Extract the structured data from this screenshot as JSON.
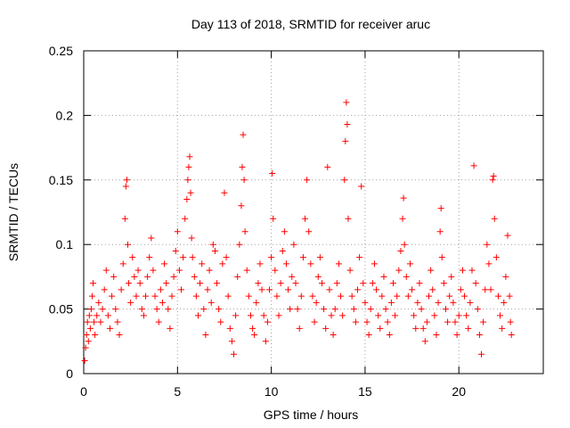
{
  "chart_data": {
    "type": "scatter",
    "title": "Day 113 of 2018, SRMTID for receiver aruc",
    "xlabel": "GPS time / hours",
    "ylabel": "SRMTID / TECUs",
    "xlim": [
      0,
      24.5
    ],
    "ylim": [
      0,
      0.25
    ],
    "x_ticks": [
      0,
      5,
      10,
      15,
      20
    ],
    "y_ticks": [
      0,
      0.05,
      0.1,
      0.15,
      0.2,
      0.25
    ],
    "x_tick_labels": [
      "0",
      "5",
      "10",
      "15",
      "20"
    ],
    "y_tick_labels": [
      "0",
      "0.05",
      "0.1",
      "0.15",
      "0.2",
      "0.25"
    ],
    "grid": true,
    "marker": "+",
    "color": "#ff0000",
    "series": [
      {
        "name": "aruc",
        "points": [
          [
            0.05,
            0.01
          ],
          [
            0.1,
            0.02
          ],
          [
            0.15,
            0.03
          ],
          [
            0.2,
            0.04
          ],
          [
            0.25,
            0.025
          ],
          [
            0.3,
            0.045
          ],
          [
            0.35,
            0.035
          ],
          [
            0.4,
            0.05
          ],
          [
            0.45,
            0.06
          ],
          [
            0.5,
            0.07
          ],
          [
            0.55,
            0.04
          ],
          [
            0.6,
            0.03
          ],
          [
            0.7,
            0.045
          ],
          [
            0.8,
            0.055
          ],
          [
            0.9,
            0.04
          ],
          [
            1.0,
            0.05
          ],
          [
            1.1,
            0.065
          ],
          [
            1.2,
            0.08
          ],
          [
            1.3,
            0.045
          ],
          [
            1.4,
            0.035
          ],
          [
            1.5,
            0.06
          ],
          [
            1.6,
            0.075
          ],
          [
            1.7,
            0.05
          ],
          [
            1.8,
            0.04
          ],
          [
            1.9,
            0.03
          ],
          [
            2.0,
            0.065
          ],
          [
            2.1,
            0.085
          ],
          [
            2.2,
            0.12
          ],
          [
            2.25,
            0.145
          ],
          [
            2.3,
            0.15
          ],
          [
            2.35,
            0.1
          ],
          [
            2.4,
            0.07
          ],
          [
            2.5,
            0.055
          ],
          [
            2.6,
            0.09
          ],
          [
            2.7,
            0.075
          ],
          [
            2.8,
            0.06
          ],
          [
            2.9,
            0.08
          ],
          [
            3.0,
            0.07
          ],
          [
            3.1,
            0.05
          ],
          [
            3.2,
            0.045
          ],
          [
            3.3,
            0.06
          ],
          [
            3.4,
            0.075
          ],
          [
            3.5,
            0.09
          ],
          [
            3.6,
            0.105
          ],
          [
            3.7,
            0.08
          ],
          [
            3.8,
            0.06
          ],
          [
            3.9,
            0.05
          ],
          [
            4.0,
            0.04
          ],
          [
            4.1,
            0.065
          ],
          [
            4.2,
            0.055
          ],
          [
            4.3,
            0.085
          ],
          [
            4.4,
            0.07
          ],
          [
            4.5,
            0.05
          ],
          [
            4.6,
            0.035
          ],
          [
            4.7,
            0.06
          ],
          [
            4.8,
            0.075
          ],
          [
            4.9,
            0.095
          ],
          [
            5.0,
            0.11
          ],
          [
            5.1,
            0.08
          ],
          [
            5.2,
            0.065
          ],
          [
            5.3,
            0.09
          ],
          [
            5.4,
            0.12
          ],
          [
            5.5,
            0.135
          ],
          [
            5.55,
            0.15
          ],
          [
            5.6,
            0.16
          ],
          [
            5.65,
            0.168
          ],
          [
            5.7,
            0.14
          ],
          [
            5.75,
            0.105
          ],
          [
            5.8,
            0.09
          ],
          [
            5.9,
            0.075
          ],
          [
            6.0,
            0.06
          ],
          [
            6.1,
            0.045
          ],
          [
            6.2,
            0.07
          ],
          [
            6.3,
            0.085
          ],
          [
            6.4,
            0.05
          ],
          [
            6.5,
            0.03
          ],
          [
            6.6,
            0.065
          ],
          [
            6.7,
            0.08
          ],
          [
            6.8,
            0.055
          ],
          [
            6.9,
            0.1
          ],
          [
            7.0,
            0.095
          ],
          [
            7.1,
            0.07
          ],
          [
            7.2,
            0.05
          ],
          [
            7.3,
            0.04
          ],
          [
            7.4,
            0.085
          ],
          [
            7.5,
            0.14
          ],
          [
            7.6,
            0.09
          ],
          [
            7.7,
            0.06
          ],
          [
            7.8,
            0.035
          ],
          [
            7.9,
            0.025
          ],
          [
            8.0,
            0.015
          ],
          [
            8.1,
            0.045
          ],
          [
            8.2,
            0.075
          ],
          [
            8.3,
            0.1
          ],
          [
            8.4,
            0.13
          ],
          [
            8.45,
            0.16
          ],
          [
            8.5,
            0.185
          ],
          [
            8.55,
            0.15
          ],
          [
            8.6,
            0.11
          ],
          [
            8.7,
            0.08
          ],
          [
            8.8,
            0.06
          ],
          [
            8.9,
            0.045
          ],
          [
            9.0,
            0.035
          ],
          [
            9.1,
            0.03
          ],
          [
            9.2,
            0.055
          ],
          [
            9.3,
            0.07
          ],
          [
            9.4,
            0.085
          ],
          [
            9.5,
            0.065
          ],
          [
            9.6,
            0.045
          ],
          [
            9.7,
            0.025
          ],
          [
            9.8,
            0.04
          ],
          [
            9.9,
            0.065
          ],
          [
            10.0,
            0.09
          ],
          [
            10.05,
            0.155
          ],
          [
            10.1,
            0.12
          ],
          [
            10.2,
            0.08
          ],
          [
            10.3,
            0.06
          ],
          [
            10.4,
            0.045
          ],
          [
            10.5,
            0.07
          ],
          [
            10.6,
            0.095
          ],
          [
            10.7,
            0.11
          ],
          [
            10.8,
            0.085
          ],
          [
            10.9,
            0.065
          ],
          [
            11.0,
            0.05
          ],
          [
            11.1,
            0.075
          ],
          [
            11.2,
            0.1
          ],
          [
            11.3,
            0.07
          ],
          [
            11.4,
            0.05
          ],
          [
            11.5,
            0.035
          ],
          [
            11.6,
            0.06
          ],
          [
            11.7,
            0.09
          ],
          [
            11.8,
            0.12
          ],
          [
            11.9,
            0.15
          ],
          [
            12.0,
            0.11
          ],
          [
            12.1,
            0.085
          ],
          [
            12.2,
            0.06
          ],
          [
            12.3,
            0.04
          ],
          [
            12.4,
            0.055
          ],
          [
            12.5,
            0.075
          ],
          [
            12.6,
            0.09
          ],
          [
            12.7,
            0.07
          ],
          [
            12.8,
            0.05
          ],
          [
            12.9,
            0.035
          ],
          [
            13.0,
            0.16
          ],
          [
            13.1,
            0.065
          ],
          [
            13.2,
            0.045
          ],
          [
            13.3,
            0.03
          ],
          [
            13.4,
            0.05
          ],
          [
            13.5,
            0.07
          ],
          [
            13.6,
            0.085
          ],
          [
            13.7,
            0.06
          ],
          [
            13.8,
            0.045
          ],
          [
            13.9,
            0.15
          ],
          [
            13.95,
            0.18
          ],
          [
            14.0,
            0.21
          ],
          [
            14.05,
            0.193
          ],
          [
            14.1,
            0.12
          ],
          [
            14.2,
            0.08
          ],
          [
            14.3,
            0.06
          ],
          [
            14.4,
            0.05
          ],
          [
            14.5,
            0.04
          ],
          [
            14.6,
            0.065
          ],
          [
            14.7,
            0.09
          ],
          [
            14.8,
            0.145
          ],
          [
            14.9,
            0.07
          ],
          [
            15.0,
            0.055
          ],
          [
            15.1,
            0.04
          ],
          [
            15.2,
            0.03
          ],
          [
            15.3,
            0.05
          ],
          [
            15.4,
            0.07
          ],
          [
            15.5,
            0.085
          ],
          [
            15.6,
            0.065
          ],
          [
            15.7,
            0.045
          ],
          [
            15.8,
            0.035
          ],
          [
            15.9,
            0.06
          ],
          [
            16.0,
            0.075
          ],
          [
            16.1,
            0.05
          ],
          [
            16.2,
            0.04
          ],
          [
            16.3,
            0.03
          ],
          [
            16.4,
            0.055
          ],
          [
            16.5,
            0.07
          ],
          [
            16.6,
            0.045
          ],
          [
            16.7,
            0.06
          ],
          [
            16.8,
            0.08
          ],
          [
            16.9,
            0.095
          ],
          [
            17.0,
            0.12
          ],
          [
            17.05,
            0.136
          ],
          [
            17.1,
            0.1
          ],
          [
            17.2,
            0.075
          ],
          [
            17.3,
            0.06
          ],
          [
            17.4,
            0.085
          ],
          [
            17.5,
            0.065
          ],
          [
            17.6,
            0.045
          ],
          [
            17.7,
            0.035
          ],
          [
            17.8,
            0.055
          ],
          [
            17.9,
            0.07
          ],
          [
            18.0,
            0.05
          ],
          [
            18.1,
            0.035
          ],
          [
            18.2,
            0.025
          ],
          [
            18.3,
            0.04
          ],
          [
            18.4,
            0.06
          ],
          [
            18.5,
            0.08
          ],
          [
            18.6,
            0.065
          ],
          [
            18.7,
            0.045
          ],
          [
            18.8,
            0.03
          ],
          [
            18.9,
            0.055
          ],
          [
            19.0,
            0.11
          ],
          [
            19.05,
            0.128
          ],
          [
            19.1,
            0.09
          ],
          [
            19.2,
            0.07
          ],
          [
            19.3,
            0.05
          ],
          [
            19.4,
            0.04
          ],
          [
            19.5,
            0.06
          ],
          [
            19.6,
            0.075
          ],
          [
            19.7,
            0.055
          ],
          [
            19.8,
            0.04
          ],
          [
            19.9,
            0.03
          ],
          [
            20.0,
            0.045
          ],
          [
            20.1,
            0.065
          ],
          [
            20.2,
            0.08
          ],
          [
            20.3,
            0.06
          ],
          [
            20.4,
            0.045
          ],
          [
            20.5,
            0.035
          ],
          [
            20.6,
            0.055
          ],
          [
            20.7,
            0.08
          ],
          [
            20.8,
            0.161
          ],
          [
            20.9,
            0.07
          ],
          [
            21.0,
            0.05
          ],
          [
            21.1,
            0.03
          ],
          [
            21.2,
            0.015
          ],
          [
            21.3,
            0.04
          ],
          [
            21.4,
            0.065
          ],
          [
            21.5,
            0.1
          ],
          [
            21.6,
            0.085
          ],
          [
            21.7,
            0.065
          ],
          [
            21.8,
            0.15
          ],
          [
            21.85,
            0.153
          ],
          [
            21.9,
            0.12
          ],
          [
            22.0,
            0.09
          ],
          [
            22.1,
            0.06
          ],
          [
            22.2,
            0.045
          ],
          [
            22.3,
            0.035
          ],
          [
            22.4,
            0.055
          ],
          [
            22.5,
            0.075
          ],
          [
            22.6,
            0.107
          ],
          [
            22.7,
            0.06
          ],
          [
            22.75,
            0.04
          ],
          [
            22.8,
            0.03
          ]
        ]
      }
    ]
  }
}
